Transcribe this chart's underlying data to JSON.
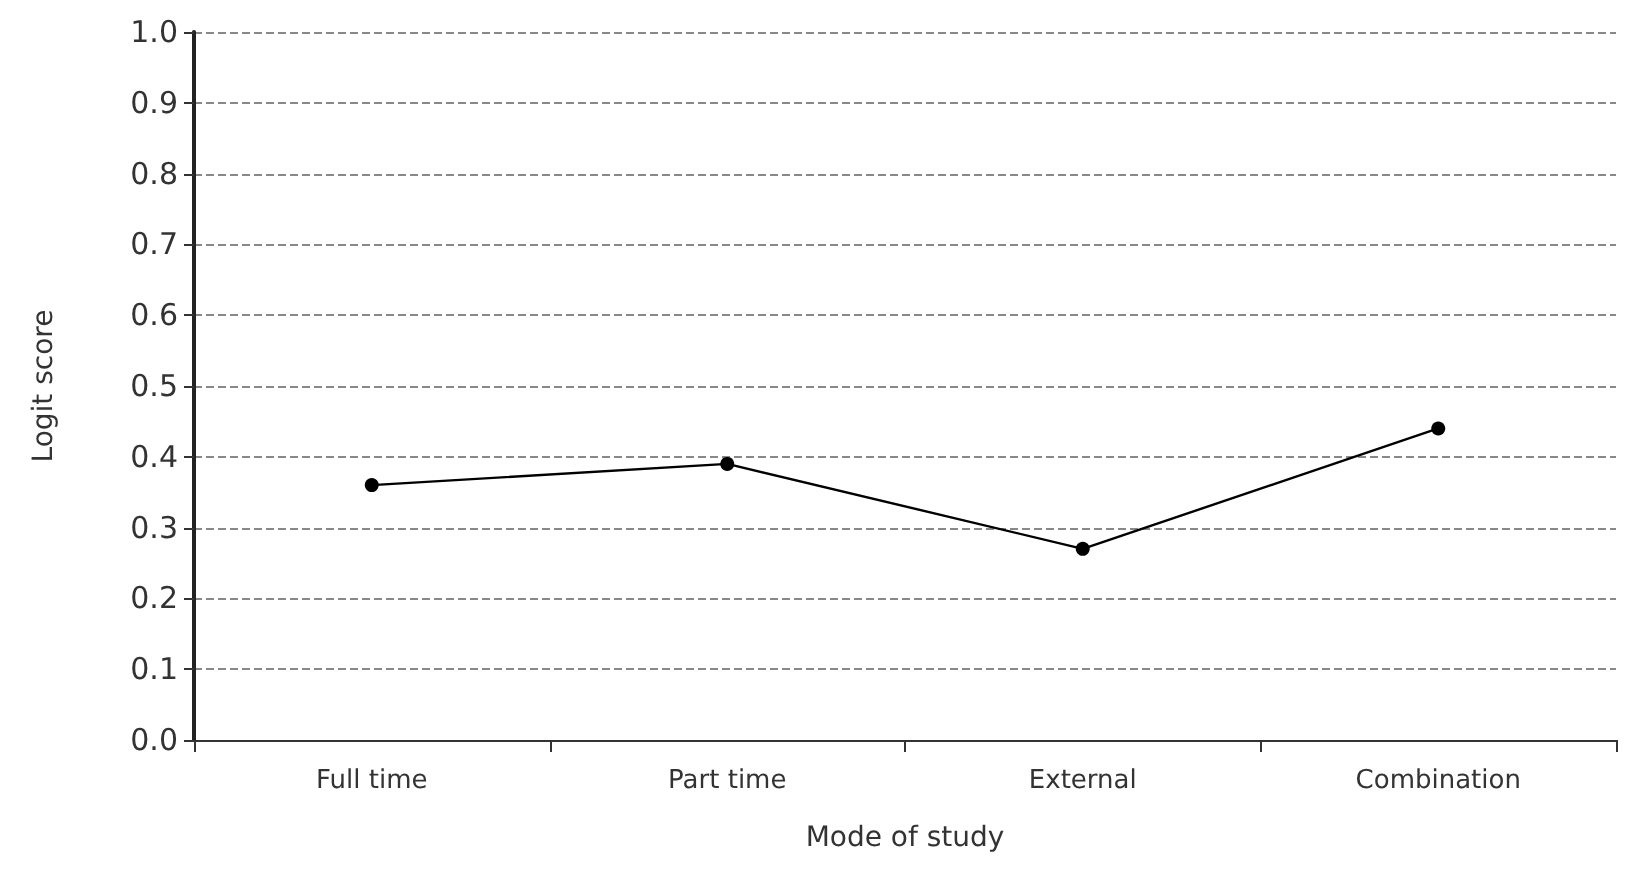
{
  "chart_data": {
    "type": "line",
    "xlabel": "Mode of study",
    "ylabel": "Logit score",
    "categories": [
      "Full time",
      "Part time",
      "External",
      "Combination"
    ],
    "series": [
      {
        "color": "#000000",
        "values": [
          0.36,
          0.39,
          0.27,
          0.44
        ]
      }
    ],
    "ylim": [
      0,
      1
    ],
    "yticks": [
      {
        "value": 0,
        "label": "0.0"
      },
      0.1,
      0.2,
      0.3,
      0.4,
      0.5,
      0.6,
      0.7,
      0.8,
      0.9,
      {
        "value": 1,
        "label": "1.0"
      }
    ],
    "grid": "y",
    "marker": "circle",
    "line_style": "solid"
  }
}
